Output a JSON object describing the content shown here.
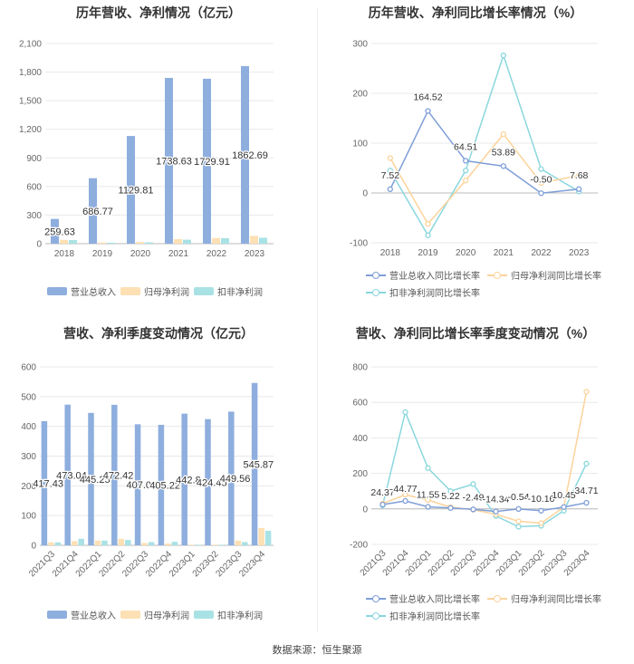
{
  "footer": {
    "source": "数据来源：恒生聚源"
  },
  "colors": {
    "revenue": "#8eaede",
    "net_profit": "#fde0b4",
    "deducted": "#a9e2e4",
    "line_revenue": "#7f9fd8",
    "line_net": "#fcd39b",
    "line_deducted": "#8ad7dd"
  },
  "chart_data": [
    {
      "id": "annual_amounts",
      "type": "bar",
      "title": "历年营收、净利情况（亿元）",
      "categories": [
        "2018",
        "2019",
        "2020",
        "2021",
        "2022",
        "2023"
      ],
      "ylim": [
        0,
        2100
      ],
      "yticks": [
        0,
        300,
        600,
        900,
        1200,
        1500,
        1800,
        2100
      ],
      "ytick_labels": [
        "0",
        "300",
        "600",
        "900",
        "1,200",
        "1,500",
        "1,800",
        "2,100"
      ],
      "series": [
        {
          "name": "营业总收入",
          "values": [
            259.63,
            686.77,
            1129.81,
            1738.63,
            1729.91,
            1862.69
          ],
          "labels": [
            "259.63",
            "686.77",
            "1129.81",
            "1738.63",
            "1729.91",
            "1862.69"
          ]
        },
        {
          "name": "归母净利润",
          "values": [
            40,
            12,
            18,
            48,
            60,
            82
          ]
        },
        {
          "name": "扣非净利润",
          "values": [
            38,
            10,
            14,
            42,
            58,
            62
          ]
        }
      ]
    },
    {
      "id": "annual_growth",
      "type": "line",
      "title": "历年营收、净利同比增长率情况（%）",
      "categories": [
        "2018",
        "2019",
        "2020",
        "2021",
        "2022",
        "2023"
      ],
      "ylim": [
        -100,
        300
      ],
      "yticks": [
        -100,
        0,
        100,
        200,
        300
      ],
      "ytick_labels": [
        "-100",
        "0",
        "100",
        "200",
        "300"
      ],
      "series": [
        {
          "name": "营业总收入同比增长率",
          "values": [
            7.52,
            164.52,
            64.51,
            53.89,
            -0.5,
            7.68
          ],
          "labels": [
            "7.52",
            "164.52",
            "64.51",
            "53.89",
            "-0.50",
            "7.68"
          ]
        },
        {
          "name": "归母净利润同比增长率",
          "values": [
            70,
            -62,
            25,
            118,
            20,
            35
          ]
        },
        {
          "name": "扣非净利润同比增长率",
          "values": [
            45,
            -85,
            45,
            276,
            48,
            3
          ]
        }
      ]
    },
    {
      "id": "quarterly_amounts",
      "type": "bar",
      "title": "营收、净利季度变动情况（亿元）",
      "categories": [
        "2021Q3",
        "2021Q4",
        "2022Q1",
        "2022Q2",
        "2022Q3",
        "2022Q4",
        "2023Q1",
        "2023Q2",
        "2023Q3",
        "2023Q4"
      ],
      "ylim": [
        0,
        600
      ],
      "yticks": [
        0,
        100,
        200,
        300,
        400,
        500,
        600
      ],
      "ytick_labels": [
        "0",
        "100",
        "200",
        "300",
        "400",
        "500",
        "600"
      ],
      "series": [
        {
          "name": "营业总收入",
          "values": [
            417.43,
            473.04,
            445.25,
            472.42,
            407.04,
            405.22,
            442.8,
            424.45,
            449.56,
            545.87
          ],
          "labels": [
            "417.43",
            "473.04",
            "445.25",
            "472.42",
            "407.04",
            "405.22",
            "442.8",
            "424.45",
            "449.56",
            "545.87"
          ]
        },
        {
          "name": "归母净利润",
          "values": [
            10,
            14,
            16,
            22,
            8,
            6,
            2,
            2,
            16,
            58
          ]
        },
        {
          "name": "扣非净利润",
          "values": [
            10,
            22,
            16,
            18,
            11,
            12,
            2,
            2,
            11,
            49
          ]
        }
      ]
    },
    {
      "id": "quarterly_growth",
      "type": "line",
      "title": "营收、净利同比增长率季度变动情况（%）",
      "categories": [
        "2021Q3",
        "2021Q4",
        "2022Q1",
        "2022Q2",
        "2022Q3",
        "2022Q4",
        "2023Q1",
        "2023Q2",
        "2023Q3",
        "2023Q4"
      ],
      "ylim": [
        -200,
        800
      ],
      "yticks": [
        -200,
        0,
        200,
        400,
        600,
        800
      ],
      "ytick_labels": [
        "-200",
        "0",
        "200",
        "400",
        "600",
        "800"
      ],
      "series": [
        {
          "name": "营业总收入同比增长率",
          "values": [
            24.37,
            44.77,
            11.55,
            5.22,
            -2.49,
            -14.34,
            -0.54,
            -10.16,
            10.45,
            34.71
          ],
          "labels": [
            "24.37",
            "44.77",
            "11.55",
            "5.22",
            "-2.49",
            "-14.34",
            "-0.54",
            "-10.16",
            "10.45",
            "34.71"
          ]
        },
        {
          "name": "归母净利润同比增长率",
          "values": [
            30,
            80,
            50,
            10,
            -5,
            -30,
            -70,
            -80,
            10,
            660
          ]
        },
        {
          "name": "扣非净利润同比增长率",
          "values": [
            20,
            545,
            230,
            100,
            140,
            -40,
            -100,
            -95,
            -10,
            255
          ]
        }
      ]
    }
  ]
}
